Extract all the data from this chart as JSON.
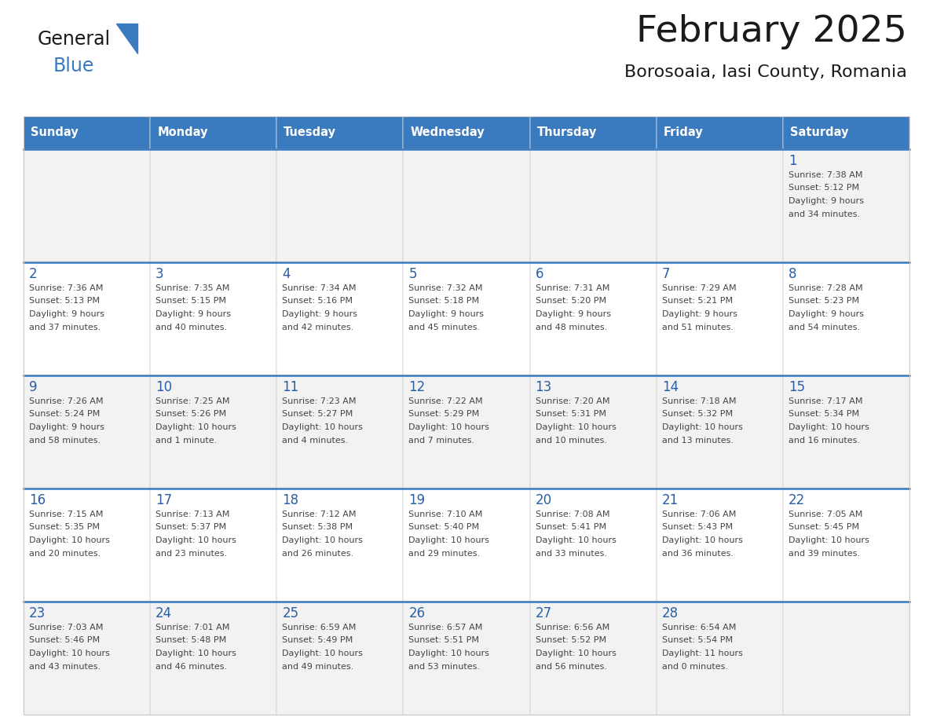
{
  "title": "February 2025",
  "subtitle": "Borosoaia, Iasi County, Romania",
  "days_of_week": [
    "Sunday",
    "Monday",
    "Tuesday",
    "Wednesday",
    "Thursday",
    "Friday",
    "Saturday"
  ],
  "header_bg": "#3a7abf",
  "header_text": "#ffffff",
  "cell_bg_odd": "#f2f2f2",
  "cell_bg_even": "#ffffff",
  "cell_border": "#cccccc",
  "row_separator": "#3a7abf",
  "day_number_color": "#2a5fa5",
  "cell_text_color": "#444444",
  "title_color": "#1a1a1a",
  "subtitle_color": "#1a1a1a",
  "logo_general_color": "#1a1a1a",
  "logo_blue_color": "#3a7abf",
  "weeks": [
    [
      null,
      null,
      null,
      null,
      null,
      null,
      1
    ],
    [
      2,
      3,
      4,
      5,
      6,
      7,
      8
    ],
    [
      9,
      10,
      11,
      12,
      13,
      14,
      15
    ],
    [
      16,
      17,
      18,
      19,
      20,
      21,
      22
    ],
    [
      23,
      24,
      25,
      26,
      27,
      28,
      null
    ]
  ],
  "day_data": {
    "1": {
      "sunrise": "7:38 AM",
      "sunset": "5:12 PM",
      "daylight": "9 hours",
      "daylight2": "and 34 minutes."
    },
    "2": {
      "sunrise": "7:36 AM",
      "sunset": "5:13 PM",
      "daylight": "9 hours",
      "daylight2": "and 37 minutes."
    },
    "3": {
      "sunrise": "7:35 AM",
      "sunset": "5:15 PM",
      "daylight": "9 hours",
      "daylight2": "and 40 minutes."
    },
    "4": {
      "sunrise": "7:34 AM",
      "sunset": "5:16 PM",
      "daylight": "9 hours",
      "daylight2": "and 42 minutes."
    },
    "5": {
      "sunrise": "7:32 AM",
      "sunset": "5:18 PM",
      "daylight": "9 hours",
      "daylight2": "and 45 minutes."
    },
    "6": {
      "sunrise": "7:31 AM",
      "sunset": "5:20 PM",
      "daylight": "9 hours",
      "daylight2": "and 48 minutes."
    },
    "7": {
      "sunrise": "7:29 AM",
      "sunset": "5:21 PM",
      "daylight": "9 hours",
      "daylight2": "and 51 minutes."
    },
    "8": {
      "sunrise": "7:28 AM",
      "sunset": "5:23 PM",
      "daylight": "9 hours",
      "daylight2": "and 54 minutes."
    },
    "9": {
      "sunrise": "7:26 AM",
      "sunset": "5:24 PM",
      "daylight": "9 hours",
      "daylight2": "and 58 minutes."
    },
    "10": {
      "sunrise": "7:25 AM",
      "sunset": "5:26 PM",
      "daylight": "10 hours",
      "daylight2": "and 1 minute."
    },
    "11": {
      "sunrise": "7:23 AM",
      "sunset": "5:27 PM",
      "daylight": "10 hours",
      "daylight2": "and 4 minutes."
    },
    "12": {
      "sunrise": "7:22 AM",
      "sunset": "5:29 PM",
      "daylight": "10 hours",
      "daylight2": "and 7 minutes."
    },
    "13": {
      "sunrise": "7:20 AM",
      "sunset": "5:31 PM",
      "daylight": "10 hours",
      "daylight2": "and 10 minutes."
    },
    "14": {
      "sunrise": "7:18 AM",
      "sunset": "5:32 PM",
      "daylight": "10 hours",
      "daylight2": "and 13 minutes."
    },
    "15": {
      "sunrise": "7:17 AM",
      "sunset": "5:34 PM",
      "daylight": "10 hours",
      "daylight2": "and 16 minutes."
    },
    "16": {
      "sunrise": "7:15 AM",
      "sunset": "5:35 PM",
      "daylight": "10 hours",
      "daylight2": "and 20 minutes."
    },
    "17": {
      "sunrise": "7:13 AM",
      "sunset": "5:37 PM",
      "daylight": "10 hours",
      "daylight2": "and 23 minutes."
    },
    "18": {
      "sunrise": "7:12 AM",
      "sunset": "5:38 PM",
      "daylight": "10 hours",
      "daylight2": "and 26 minutes."
    },
    "19": {
      "sunrise": "7:10 AM",
      "sunset": "5:40 PM",
      "daylight": "10 hours",
      "daylight2": "and 29 minutes."
    },
    "20": {
      "sunrise": "7:08 AM",
      "sunset": "5:41 PM",
      "daylight": "10 hours",
      "daylight2": "and 33 minutes."
    },
    "21": {
      "sunrise": "7:06 AM",
      "sunset": "5:43 PM",
      "daylight": "10 hours",
      "daylight2": "and 36 minutes."
    },
    "22": {
      "sunrise": "7:05 AM",
      "sunset": "5:45 PM",
      "daylight": "10 hours",
      "daylight2": "and 39 minutes."
    },
    "23": {
      "sunrise": "7:03 AM",
      "sunset": "5:46 PM",
      "daylight": "10 hours",
      "daylight2": "and 43 minutes."
    },
    "24": {
      "sunrise": "7:01 AM",
      "sunset": "5:48 PM",
      "daylight": "10 hours",
      "daylight2": "and 46 minutes."
    },
    "25": {
      "sunrise": "6:59 AM",
      "sunset": "5:49 PM",
      "daylight": "10 hours",
      "daylight2": "and 49 minutes."
    },
    "26": {
      "sunrise": "6:57 AM",
      "sunset": "5:51 PM",
      "daylight": "10 hours",
      "daylight2": "and 53 minutes."
    },
    "27": {
      "sunrise": "6:56 AM",
      "sunset": "5:52 PM",
      "daylight": "10 hours",
      "daylight2": "and 56 minutes."
    },
    "28": {
      "sunrise": "6:54 AM",
      "sunset": "5:54 PM",
      "daylight": "11 hours",
      "daylight2": "and 0 minutes."
    }
  },
  "figsize": [
    11.88,
    9.18
  ],
  "dpi": 100
}
